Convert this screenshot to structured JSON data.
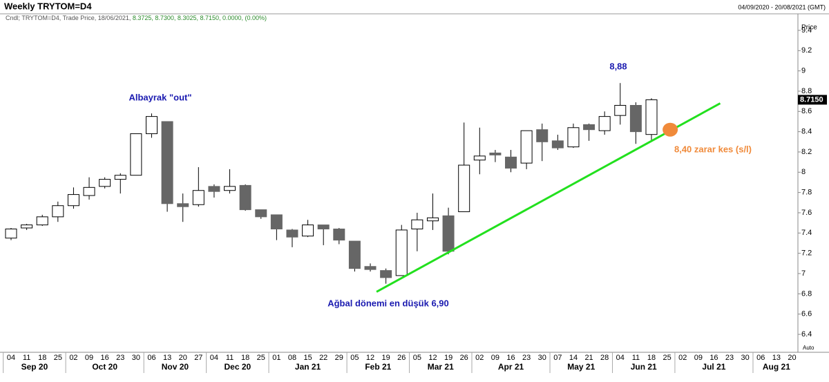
{
  "chart_data": {
    "type": "candlestick",
    "title": "Weekly TRYTOM=D4",
    "date_range": "04/09/2020 - 20/08/2021 (GMT)",
    "legend": {
      "prefix": "Cndl; TRYTOM=D4, Trade Price, 18/06/2021,",
      "values": "8.3725, 8.7300, 8.3025, 8.7150, 0.0000, (0.00%)"
    },
    "y_axis_label": "Price",
    "scale_mode": "Auto",
    "categories": [
      "04",
      "11",
      "18",
      "25",
      "02",
      "09",
      "16",
      "23",
      "30",
      "06",
      "13",
      "20",
      "27",
      "04",
      "11",
      "18",
      "25",
      "01",
      "08",
      "15",
      "22",
      "29",
      "05",
      "12",
      "19",
      "26",
      "05",
      "12",
      "19",
      "26",
      "02",
      "09",
      "16",
      "23",
      "30",
      "07",
      "14",
      "21",
      "28",
      "04",
      "11",
      "18",
      "25",
      "02",
      "09",
      "16",
      "23",
      "30",
      "06",
      "13",
      "20"
    ],
    "months": [
      "Sep 20",
      "Oct 20",
      "Nov 20",
      "Dec 20",
      "Jan 21",
      "Feb 21",
      "Mar 21",
      "Apr 21",
      "May 21",
      "Jun 21",
      "Jul 21",
      "Aug 21"
    ],
    "open": [
      7.35,
      7.45,
      7.48,
      7.56,
      7.67,
      7.77,
      7.86,
      7.93,
      7.97,
      8.38,
      8.5,
      7.69,
      7.68,
      7.86,
      7.82,
      7.87,
      7.63,
      7.58,
      7.43,
      7.37,
      7.48,
      7.44,
      7.32,
      7.07,
      7.03,
      6.98,
      7.44,
      7.52,
      7.57,
      7.61,
      8.12,
      8.19,
      8.15,
      8.09,
      8.42,
      8.31,
      8.25,
      8.47,
      8.41,
      8.56,
      8.66,
      8.3725,
      null,
      null,
      null,
      null,
      null,
      null,
      null,
      null,
      null
    ],
    "high": [
      7.45,
      7.49,
      7.58,
      7.71,
      7.85,
      7.95,
      7.95,
      7.99,
      8.38,
      8.58,
      8.5,
      7.79,
      8.05,
      7.88,
      8.03,
      7.88,
      7.63,
      7.58,
      7.44,
      7.53,
      7.48,
      7.45,
      7.32,
      7.1,
      7.05,
      7.48,
      7.6,
      7.79,
      7.65,
      8.49,
      8.44,
      8.22,
      8.22,
      8.41,
      8.48,
      8.37,
      8.48,
      8.48,
      8.6,
      8.88,
      8.69,
      8.73,
      null,
      null,
      null,
      null,
      null,
      null,
      null,
      null,
      null
    ],
    "low": [
      7.33,
      7.43,
      7.47,
      7.51,
      7.64,
      7.73,
      7.84,
      7.79,
      7.97,
      8.34,
      7.61,
      7.51,
      7.66,
      7.75,
      7.79,
      7.62,
      7.54,
      7.33,
      7.26,
      7.36,
      7.28,
      7.29,
      7.02,
      7.02,
      6.9,
      6.98,
      7.22,
      7.43,
      7.19,
      7.61,
      7.98,
      8.1,
      8.0,
      8.03,
      8.11,
      8.22,
      8.24,
      8.31,
      8.37,
      8.47,
      8.28,
      8.3025,
      null,
      null,
      null,
      null,
      null,
      null,
      null,
      null,
      null
    ],
    "close": [
      7.44,
      7.48,
      7.56,
      7.67,
      7.78,
      7.85,
      7.93,
      7.97,
      8.38,
      8.55,
      7.69,
      7.66,
      7.82,
      7.81,
      7.86,
      7.63,
      7.56,
      7.44,
      7.36,
      7.48,
      7.44,
      7.33,
      7.05,
      7.04,
      6.96,
      7.43,
      7.53,
      7.55,
      7.22,
      8.07,
      8.16,
      8.17,
      8.04,
      8.41,
      8.3,
      8.24,
      8.44,
      8.42,
      8.55,
      8.66,
      8.4,
      8.715,
      null,
      null,
      null,
      null,
      null,
      null,
      null,
      null,
      null
    ],
    "up_color": "#ffffff",
    "down_color": "#666666",
    "last_price": {
      "value": 8.715,
      "label": "8.7150"
    },
    "ylim": [
      6.223,
      9.495
    ],
    "yticks": [
      6.4,
      6.6,
      6.8,
      7,
      7.2,
      7.4,
      7.6,
      7.8,
      8,
      8.2,
      8.4,
      8.6,
      8.8,
      9,
      9.2,
      9.4
    ],
    "grid": false,
    "trendline": {
      "start": {
        "x": 23.4,
        "y": 6.82
      },
      "end": {
        "x": 45.4,
        "y": 8.68
      },
      "color": "#22e01e"
    },
    "stop_marker": {
      "x": 42.2,
      "y": 8.42,
      "color": "#f08a3a"
    },
    "annotations": [
      "Albayrak \"out\"",
      "8,88",
      "Ağbal dönemi en düşük 6,90",
      "8,40 zarar kes (s/l)"
    ]
  }
}
